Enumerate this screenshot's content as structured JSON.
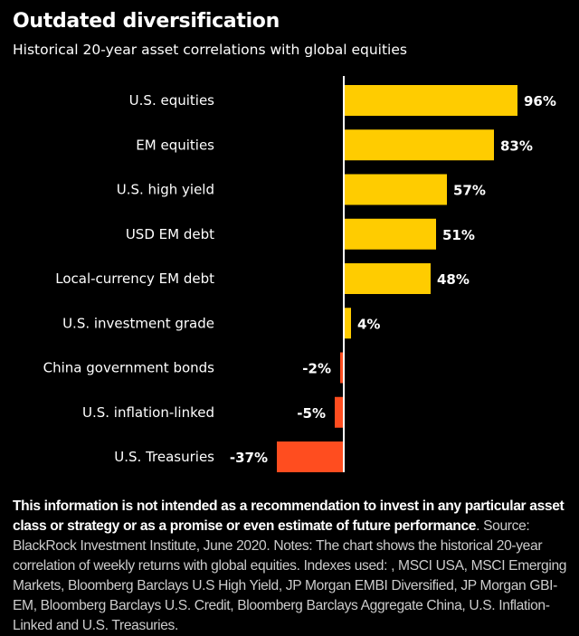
{
  "header": {
    "title": "Outdated diversification",
    "subtitle": "Historical 20-year asset correlations with global equities"
  },
  "chart_data": {
    "type": "bar",
    "orientation": "horizontal",
    "categories": [
      "U.S. equities",
      "EM equities",
      "U.S. high yield",
      "USD EM debt",
      "Local-currency EM debt",
      "U.S. investment grade",
      "China government bonds",
      "U.S. inflation-linked",
      "U.S. Treasuries"
    ],
    "values": [
      96,
      83,
      57,
      51,
      48,
      4,
      -2,
      -5,
      -37
    ],
    "value_labels": [
      "96%",
      "83%",
      "57%",
      "51%",
      "48%",
      "4%",
      "-2%",
      "-5%",
      "-37%"
    ],
    "unit": "%",
    "title": "Outdated diversification",
    "subtitle": "Historical 20-year asset correlations with global equities",
    "xlabel": "",
    "ylabel": "",
    "xlim": [
      -37,
      100
    ],
    "colors": {
      "positive": "#FFCC00",
      "negative": "#FF4D1F",
      "axis": "#FFFFFF"
    }
  },
  "footer": {
    "disclaimer_bold": "This information is not intended as a recommendation to invest in any particular asset class or strategy or as a promise or even estimate of future performance",
    "disclaimer_rest": ". Source: BlackRock Investment Institute, June 2020. Notes: The chart shows the historical 20-year correlation of weekly returns with global equities. Indexes used: , MSCI USA, MSCI Emerging Markets, Bloomberg Barclays U.S High Yield, JP Morgan EMBI Diversified, JP Morgan GBI-EM, Bloomberg Barclays U.S. Credit, Bloomberg Barclays Aggregate China, U.S. Inflation-Linked and U.S. Treasuries."
  }
}
